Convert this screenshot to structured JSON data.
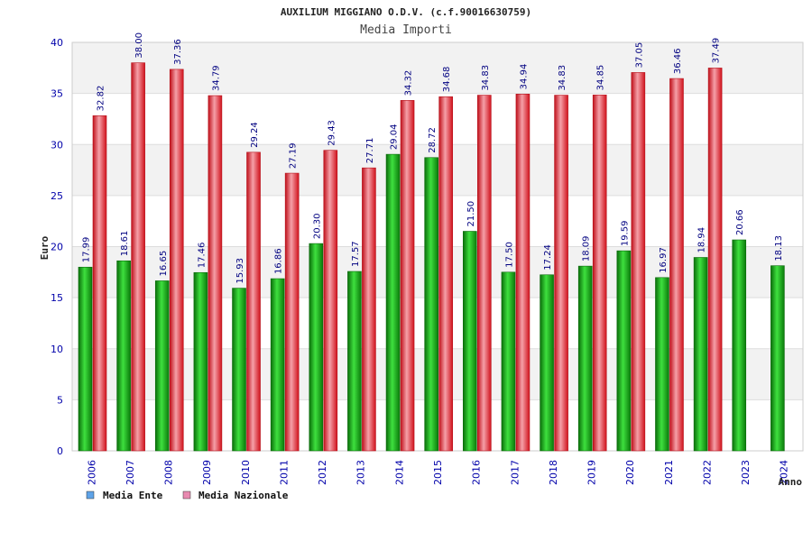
{
  "chart_data": {
    "type": "bar",
    "title": "AUXILIUM MIGGIANO O.D.V. (c.f.90016630759)",
    "subtitle": "Media Importi",
    "xlabel": "Anno",
    "ylabel": "Euro",
    "ylim": [
      0,
      40
    ],
    "yticks": [
      "0",
      "5",
      "10",
      "15",
      "20",
      "25",
      "30",
      "35",
      "40"
    ],
    "grid": true,
    "legend_position": "bottom-left",
    "categories": [
      "2006",
      "2007",
      "2008",
      "2009",
      "2010",
      "2011",
      "2012",
      "2013",
      "2014",
      "2015",
      "2016",
      "2017",
      "2018",
      "2019",
      "2020",
      "2021",
      "2022",
      "2023",
      "2024"
    ],
    "series": [
      {
        "name": "Media Ente",
        "legend_color": "#5ea3e8",
        "bar_color": "#11a811",
        "values": [
          17.99,
          18.61,
          16.65,
          17.46,
          15.93,
          16.86,
          20.3,
          17.57,
          29.04,
          28.72,
          21.5,
          17.5,
          17.24,
          18.09,
          19.59,
          16.97,
          18.94,
          20.66,
          18.13
        ],
        "labels": [
          "17.99",
          "18.61",
          "16.65",
          "17.46",
          "15.93",
          "16.86",
          "20.30",
          "17.57",
          "29.04",
          "28.72",
          "21.50",
          "17.50",
          "17.24",
          "18.09",
          "19.59",
          "16.97",
          "18.94",
          "20.66",
          "18.13"
        ]
      },
      {
        "name": "Media Nazionale",
        "legend_color": "#e88ab0",
        "bar_color": "#e8202a",
        "values": [
          32.82,
          38.0,
          37.36,
          34.79,
          29.24,
          27.19,
          29.43,
          27.71,
          34.32,
          34.68,
          34.83,
          34.94,
          34.83,
          34.85,
          37.05,
          36.46,
          37.49,
          null,
          null
        ],
        "labels": [
          "32.82",
          "38.00",
          "37.36",
          "34.79",
          "29.24",
          "27.19",
          "29.43",
          "27.71",
          "34.32",
          "34.68",
          "34.83",
          "34.94",
          "34.83",
          "34.85",
          "37.05",
          "36.46",
          "37.49",
          "",
          ""
        ]
      }
    ]
  }
}
